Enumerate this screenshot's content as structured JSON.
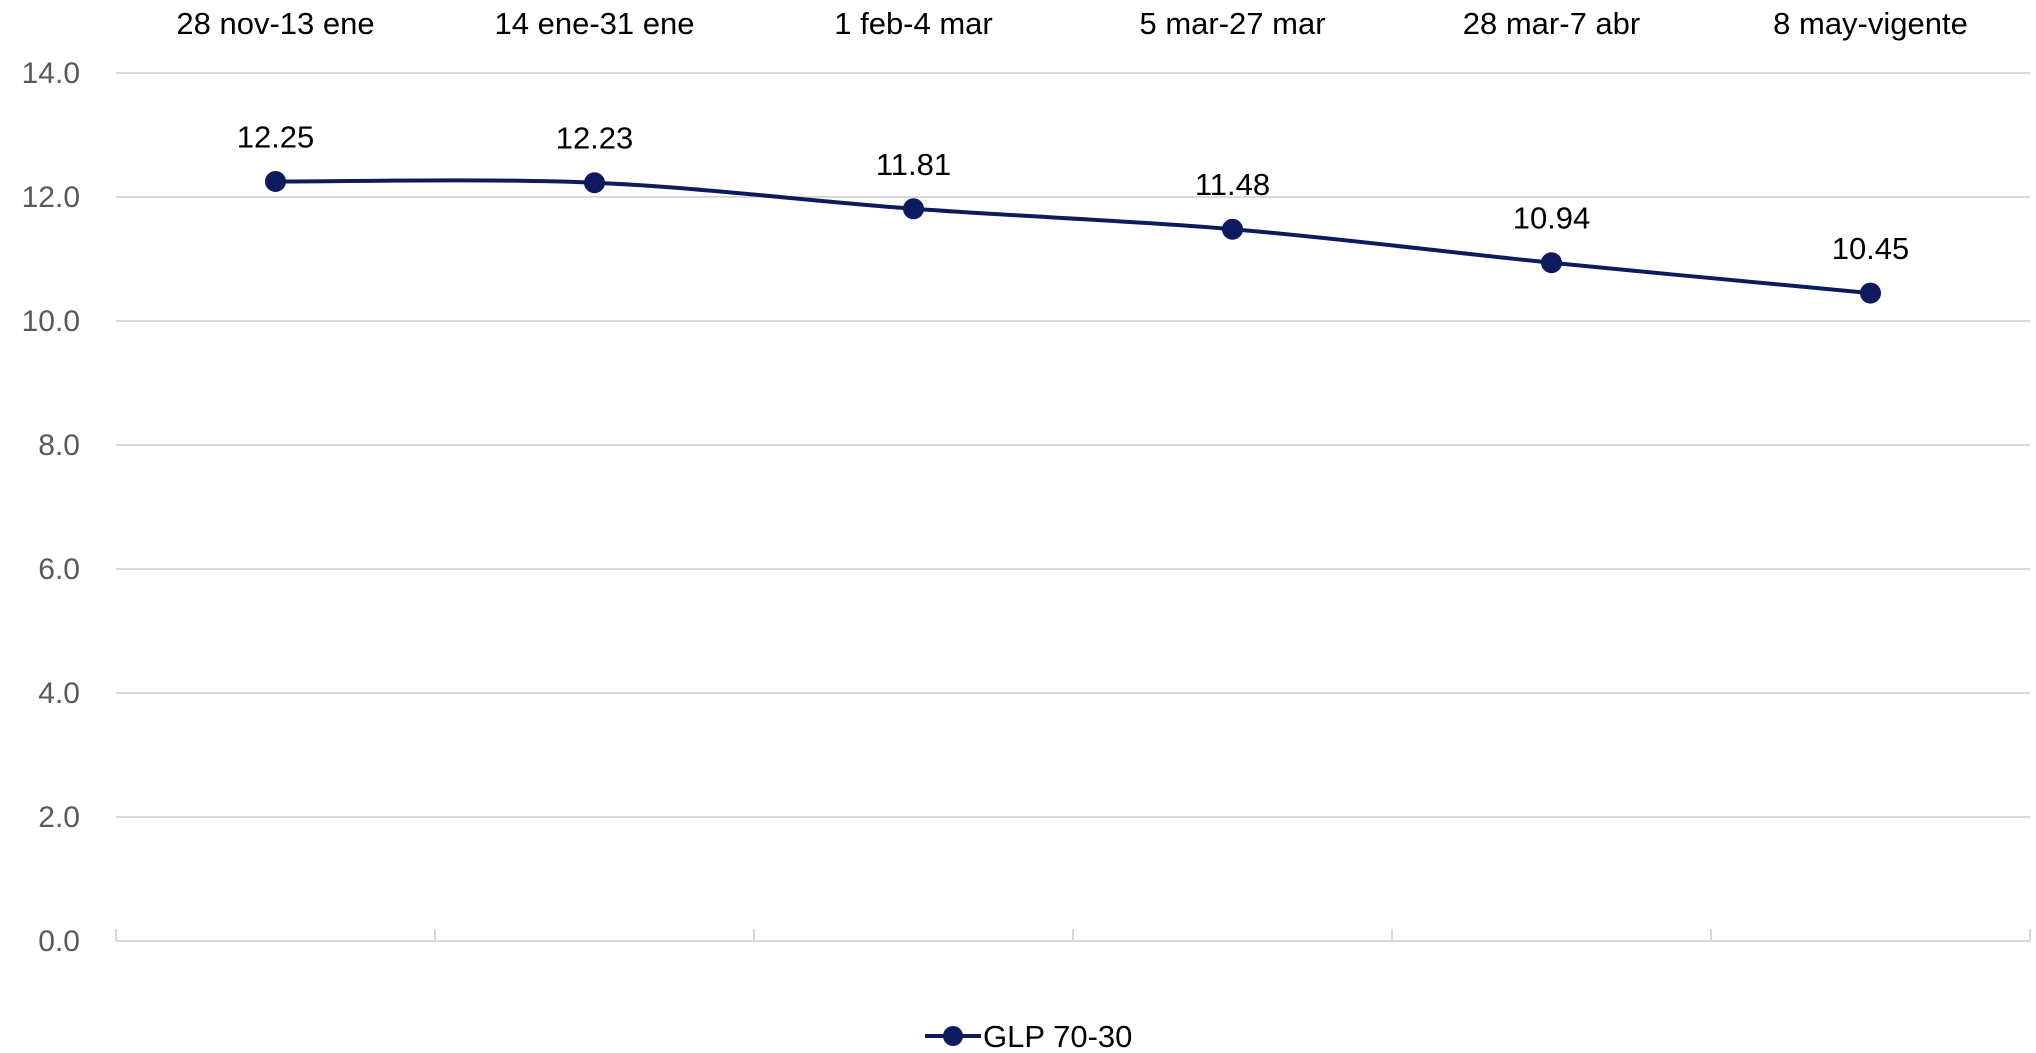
{
  "chart_data": {
    "type": "line",
    "categories": [
      "28 nov-13 ene",
      "14 ene-31 ene",
      "1 feb-4 mar",
      "5 mar-27 mar",
      "28 mar-7 abr",
      "8 may-vigente"
    ],
    "series": [
      {
        "name": "GLP 70-30",
        "values": [
          12.25,
          12.23,
          11.81,
          11.48,
          10.94,
          10.45
        ]
      }
    ],
    "data_labels": [
      "12.25",
      "12.23",
      "11.81",
      "11.48",
      "10.94",
      "10.45"
    ],
    "ylim": [
      0,
      14
    ],
    "yticks": [
      "0.0",
      "2.0",
      "4.0",
      "6.0",
      "8.0",
      "10.0",
      "12.0",
      "14.0"
    ],
    "ytick_values": [
      0,
      2,
      4,
      6,
      8,
      10,
      12,
      14
    ],
    "category_axis_position": "top",
    "legend_position": "bottom",
    "grid": true,
    "smooth": true,
    "colors": {
      "series": "#0d1b5e",
      "grid": "#d9d9d9",
      "tick_text": "#595959"
    },
    "title": "",
    "xlabel": "",
    "ylabel": ""
  }
}
